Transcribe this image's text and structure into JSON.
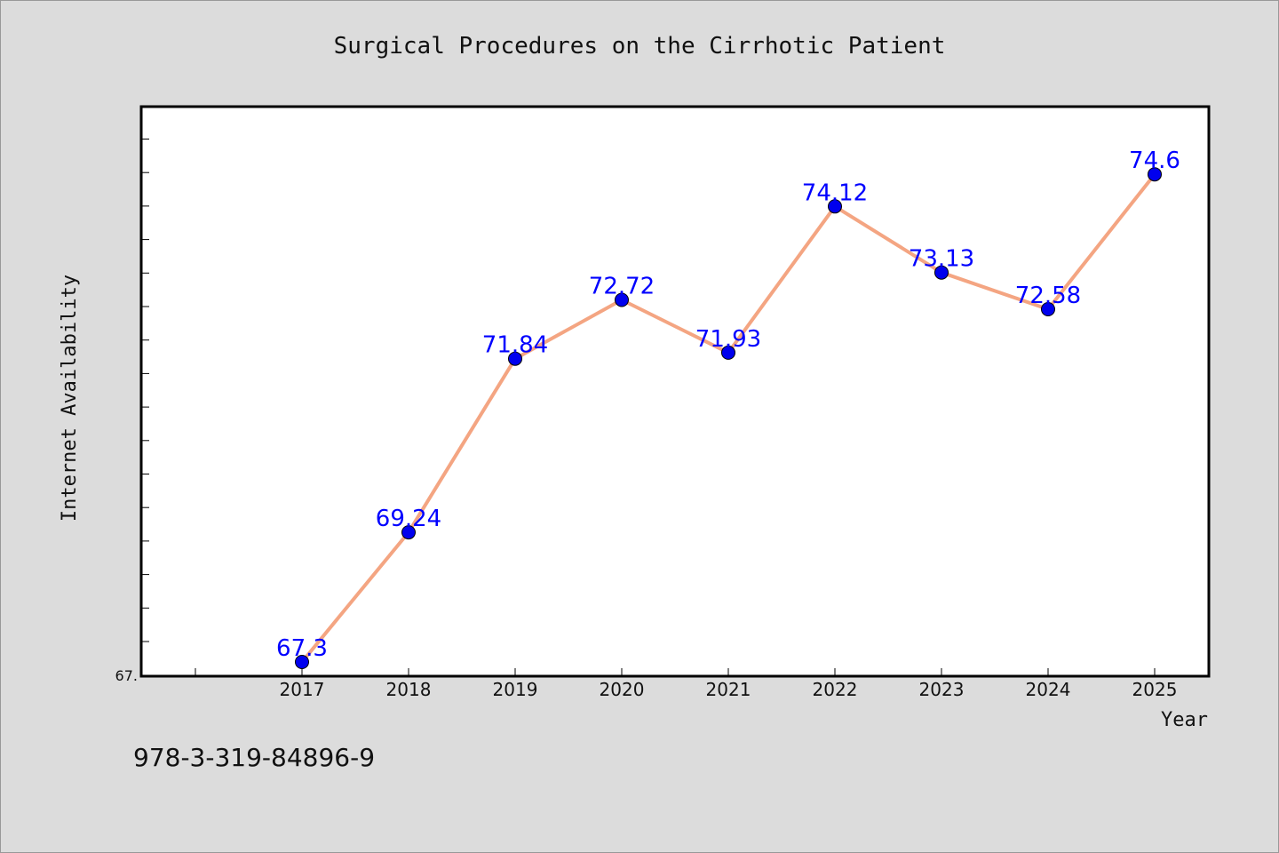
{
  "chart_data": {
    "type": "line",
    "title": "Surgical Procedures on the Cirrhotic Patient",
    "xlabel": "Year",
    "ylabel": "Internet Availability",
    "categories": [
      "2017",
      "2018",
      "2019",
      "2020",
      "2021",
      "2022",
      "2023",
      "2024",
      "2025"
    ],
    "series": [
      {
        "values": [
          67.3,
          69.24,
          71.84,
          72.72,
          71.93,
          74.12,
          73.13,
          72.58,
          74.6
        ],
        "labels": [
          "67.3",
          "69.24",
          "71.84",
          "72.72",
          "71.93",
          "74.12",
          "73.13",
          "72.58",
          "74.6"
        ]
      }
    ],
    "ylim": [
      67.1,
      75.6
    ],
    "y_tick_label": "67.",
    "grid": false,
    "line_color": "#f4a582",
    "marker_color": "#0000ee",
    "label_color": "#0000ff"
  },
  "footer": {
    "isbn": "978-3-319-84896-9"
  }
}
